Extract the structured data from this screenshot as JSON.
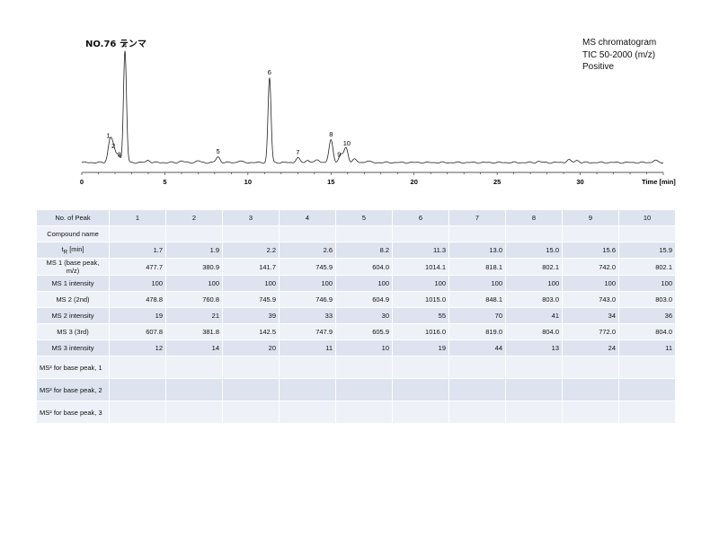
{
  "header": {
    "title": "NO.76 テンマ",
    "info_line1": "MS chromatogram",
    "info_line2": "TIC 50-2000 (m/z)",
    "info_line3": "Positive"
  },
  "chart_data": {
    "type": "line",
    "xlabel": "Time [min]",
    "xlim": [
      0,
      35
    ],
    "xticks": [
      0,
      5,
      10,
      15,
      20,
      25,
      30
    ],
    "peaks": [
      {
        "label": "1",
        "x": 1.7,
        "y": 0.19
      },
      {
        "label": "2",
        "x": 1.9,
        "y": 0.12
      },
      {
        "label": "3",
        "x": 2.2,
        "y": 0.07
      },
      {
        "label": "4",
        "x": 2.6,
        "y": 1.0
      },
      {
        "label": "5",
        "x": 8.2,
        "y": 0.05
      },
      {
        "label": "6",
        "x": 11.3,
        "y": 0.76
      },
      {
        "label": "7",
        "x": 13.0,
        "y": 0.04
      },
      {
        "label": "8",
        "x": 15.0,
        "y": 0.2
      },
      {
        "label": "9",
        "x": 15.6,
        "y": 0.07
      },
      {
        "label": "10",
        "x": 15.9,
        "y": 0.13
      }
    ],
    "minor_peaks": [
      {
        "x": 4.0,
        "y": 0.02
      },
      {
        "x": 6.0,
        "y": 0.015
      },
      {
        "x": 7.0,
        "y": 0.015
      },
      {
        "x": 9.5,
        "y": 0.015
      },
      {
        "x": 13.6,
        "y": 0.02
      },
      {
        "x": 14.2,
        "y": 0.025
      },
      {
        "x": 16.4,
        "y": 0.03
      },
      {
        "x": 17.2,
        "y": 0.015
      },
      {
        "x": 27.5,
        "y": 0.01
      },
      {
        "x": 29.3,
        "y": 0.025
      },
      {
        "x": 29.8,
        "y": 0.02
      },
      {
        "x": 34.5,
        "y": 0.02
      }
    ]
  },
  "table": {
    "rows": [
      {
        "label": "No. of Peak",
        "values": [
          "1",
          "2",
          "3",
          "4",
          "5",
          "6",
          "7",
          "8",
          "9",
          "10"
        ],
        "align": "h"
      },
      {
        "label": "Compound name",
        "values": [
          "",
          "",
          "",
          "",
          "",
          "",
          "",
          "",
          "",
          ""
        ],
        "align": "n"
      },
      {
        "label_html": "t<sub>R</sub> [min]",
        "label": "tR [min]",
        "values": [
          "1.7",
          "1.9",
          "2.2",
          "2.6",
          "8.2",
          "11.3",
          "13.0",
          "15.0",
          "15.6",
          "15.9"
        ],
        "align": "n"
      },
      {
        "label": "MS 1 (base peak, m/z)",
        "values": [
          "477.7",
          "380.9",
          "141.7",
          "745.9",
          "604.0",
          "1014.1",
          "818.1",
          "802.1",
          "742.0",
          "802.1"
        ],
        "align": "n"
      },
      {
        "label": "MS 1 intensity",
        "values": [
          "100",
          "100",
          "100",
          "100",
          "100",
          "100",
          "100",
          "100",
          "100",
          "100"
        ],
        "align": "n"
      },
      {
        "label": "MS 2 (2nd)",
        "values": [
          "478.8",
          "760.8",
          "745.9",
          "746.9",
          "604.9",
          "1015.0",
          "848.1",
          "803.0",
          "743.0",
          "803.0"
        ],
        "align": "n"
      },
      {
        "label": "MS 2 intensity",
        "values": [
          "19",
          "21",
          "39",
          "33",
          "30",
          "55",
          "70",
          "41",
          "34",
          "36"
        ],
        "align": "n"
      },
      {
        "label": "MS 3 (3rd)",
        "values": [
          "607.8",
          "381.8",
          "142.5",
          "747.9",
          "605.9",
          "1016.0",
          "819.0",
          "804.0",
          "772.0",
          "804.0"
        ],
        "align": "n"
      },
      {
        "label": "MS 3 intensity",
        "values": [
          "12",
          "14",
          "20",
          "11",
          "10",
          "19",
          "44",
          "13",
          "24",
          "11"
        ],
        "align": "n"
      },
      {
        "label": "MS² for base peak, 1",
        "values": [
          "",
          "",
          "",
          "",
          "",
          "",
          "",
          "",
          "",
          ""
        ],
        "align": "n",
        "tall": true
      },
      {
        "label": "MS² for base peak, 2",
        "values": [
          "",
          "",
          "",
          "",
          "",
          "",
          "",
          "",
          "",
          ""
        ],
        "align": "n",
        "tall": true
      },
      {
        "label": "MS² for base peak, 3",
        "values": [
          "",
          "",
          "",
          "",
          "",
          "",
          "",
          "",
          "",
          ""
        ],
        "align": "n",
        "tall": true
      }
    ]
  }
}
